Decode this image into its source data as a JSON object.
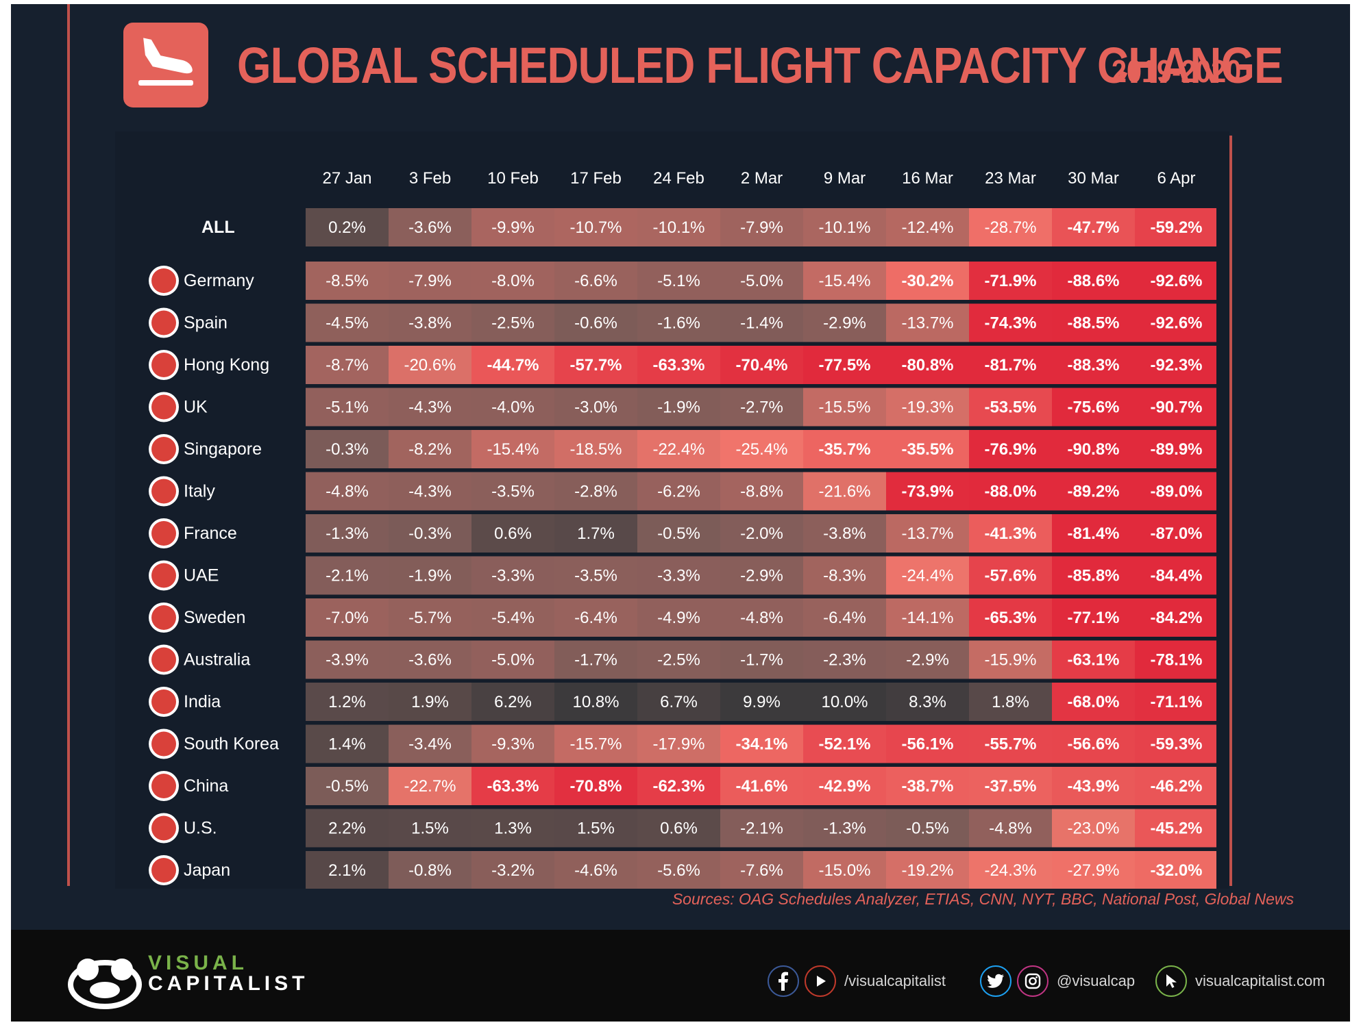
{
  "header": {
    "title": "GLOBAL SCHEDULED FLIGHT CAPACITY CHANGE",
    "years": "2019-2020",
    "logo_icon": "airplane-landing-icon"
  },
  "colors": {
    "accent": "#e4625a",
    "background": "#16202e",
    "positive": "#3c3a3c",
    "neutral": "#7a5b58",
    "moderate": "#f0756b",
    "severe": "#e12a3c"
  },
  "chart_data": {
    "type": "heatmap",
    "title": "GLOBAL SCHEDULED FLIGHT CAPACITY CHANGE",
    "subtitle": "2019-2020",
    "unit": "%",
    "columns": [
      "27 Jan",
      "3 Feb",
      "10 Feb",
      "17 Feb",
      "24 Feb",
      "2 Mar",
      "9 Mar",
      "16 Mar",
      "23 Mar",
      "30 Mar",
      "6 Apr"
    ],
    "rows": [
      {
        "label": "ALL",
        "flag": "",
        "values": [
          0.2,
          -3.6,
          -9.9,
          -10.7,
          -10.1,
          -7.9,
          -10.1,
          -12.4,
          -28.7,
          -47.7,
          -59.2
        ]
      },
      {
        "label": "Germany",
        "flag": "germany-flag-icon",
        "values": [
          -8.5,
          -7.9,
          -8.0,
          -6.6,
          -5.1,
          -5.0,
          -15.4,
          -30.2,
          -71.9,
          -88.6,
          -92.6
        ]
      },
      {
        "label": "Spain",
        "flag": "spain-flag-icon",
        "values": [
          -4.5,
          -3.8,
          -2.5,
          -0.6,
          -1.6,
          -1.4,
          -2.9,
          -13.7,
          -74.3,
          -88.5,
          -92.6
        ]
      },
      {
        "label": "Hong Kong",
        "flag": "hong-kong-flag-icon",
        "values": [
          -8.7,
          -20.6,
          -44.7,
          -57.7,
          -63.3,
          -70.4,
          -77.5,
          -80.8,
          -81.7,
          -88.3,
          -92.3
        ]
      },
      {
        "label": "UK",
        "flag": "uk-flag-icon",
        "values": [
          -5.1,
          -4.3,
          -4.0,
          -3.0,
          -1.9,
          -2.7,
          -15.5,
          -19.3,
          -53.5,
          -75.6,
          -90.7
        ]
      },
      {
        "label": "Singapore",
        "flag": "singapore-flag-icon",
        "values": [
          -0.3,
          -8.2,
          -15.4,
          -18.5,
          -22.4,
          -25.4,
          -35.7,
          -35.5,
          -76.9,
          -90.8,
          -89.9
        ]
      },
      {
        "label": "Italy",
        "flag": "italy-flag-icon",
        "values": [
          -4.8,
          -4.3,
          -3.5,
          -2.8,
          -6.2,
          -8.8,
          -21.6,
          -73.9,
          -88.0,
          -89.2,
          -89.0
        ]
      },
      {
        "label": "France",
        "flag": "france-flag-icon",
        "values": [
          -1.3,
          -0.3,
          0.6,
          1.7,
          -0.5,
          -2.0,
          -3.8,
          -13.7,
          -41.3,
          -81.4,
          -87.0
        ]
      },
      {
        "label": "UAE",
        "flag": "uae-flag-icon",
        "values": [
          -2.1,
          -1.9,
          -3.3,
          -3.5,
          -3.3,
          -2.9,
          -8.3,
          -24.4,
          -57.6,
          -85.8,
          -84.4
        ]
      },
      {
        "label": "Sweden",
        "flag": "sweden-flag-icon",
        "values": [
          -7.0,
          -5.7,
          -5.4,
          -6.4,
          -4.9,
          -4.8,
          -6.4,
          -14.1,
          -65.3,
          -77.1,
          -84.2
        ]
      },
      {
        "label": "Australia",
        "flag": "australia-flag-icon",
        "values": [
          -3.9,
          -3.6,
          -5.0,
          -1.7,
          -2.5,
          -1.7,
          -2.3,
          -2.9,
          -15.9,
          -63.1,
          -78.1
        ]
      },
      {
        "label": "India",
        "flag": "india-flag-icon",
        "values": [
          1.2,
          1.9,
          6.2,
          10.8,
          6.7,
          9.9,
          10.0,
          8.3,
          1.8,
          -68.0,
          -71.1
        ]
      },
      {
        "label": "South Korea",
        "flag": "south-korea-flag-icon",
        "values": [
          1.4,
          -3.4,
          -9.3,
          -15.7,
          -17.9,
          -34.1,
          -52.1,
          -56.1,
          -55.7,
          -56.6,
          -59.3
        ]
      },
      {
        "label": "China",
        "flag": "china-flag-icon",
        "values": [
          -0.5,
          -22.7,
          -63.3,
          -70.8,
          -62.3,
          -41.6,
          -42.9,
          -38.7,
          -37.5,
          -43.9,
          -46.2
        ]
      },
      {
        "label": "U.S.",
        "flag": "us-flag-icon",
        "values": [
          2.2,
          1.5,
          1.3,
          1.5,
          0.6,
          -2.1,
          -1.3,
          -0.5,
          -4.8,
          -23.0,
          -45.2
        ]
      },
      {
        "label": "Japan",
        "flag": "japan-flag-icon",
        "values": [
          2.1,
          -0.8,
          -3.2,
          -4.6,
          -5.6,
          -7.6,
          -15.0,
          -19.2,
          -24.3,
          -27.9,
          -32.0
        ]
      }
    ]
  },
  "sources": "Sources: OAG Schedules Analyzer, ETIAS, CNN, NYT, BBC, National Post, Global News",
  "footer": {
    "brand_line1": "VISUAL",
    "brand_line2": "CAPITALIST",
    "social_handle_1": "/visualcapitalist",
    "social_handle_2": "@visualcap",
    "website": "visualcapitalist.com"
  }
}
